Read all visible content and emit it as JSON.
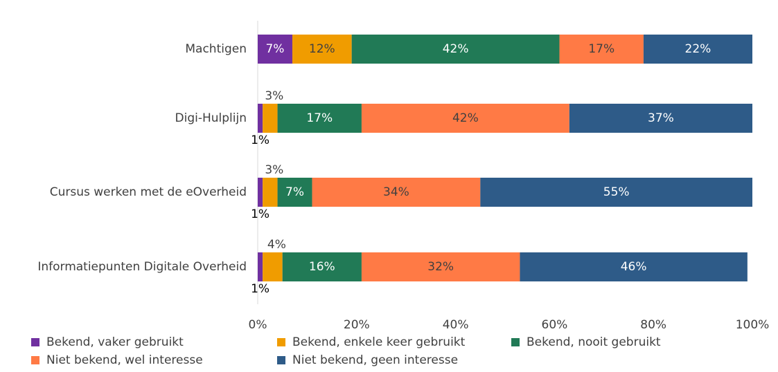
{
  "chart_data": {
    "type": "stacked_bar_horizontal",
    "categories": [
      "Machtigen",
      "Digi-Hulplijn",
      "Cursus werken met de eOverheid",
      "Informatiepunten Digitale Overheid"
    ],
    "series": [
      {
        "name": "Bekend, vaker gebruikt",
        "color": "#7030a0",
        "label_color": "#ffffff",
        "values": [
          7,
          1,
          1,
          1
        ],
        "value_labels": [
          "7%",
          "1%",
          "1%",
          "1%"
        ]
      },
      {
        "name": "Bekend, enkele keer gebruikt",
        "color": "#f09c00",
        "label_color": "#404040",
        "values": [
          12,
          3,
          3,
          4
        ],
        "value_labels": [
          "12%",
          "3%",
          "3%",
          "4%"
        ]
      },
      {
        "name": "Bekend, nooit gebruikt",
        "color": "#217a56",
        "label_color": "#ffffff",
        "values": [
          42,
          17,
          7,
          16
        ],
        "value_labels": [
          "42%",
          "17%",
          "7%",
          "16%"
        ]
      },
      {
        "name": "Niet bekend,  wel interesse",
        "color": "#ff7a45",
        "label_color": "#404040",
        "values": [
          17,
          42,
          34,
          32
        ],
        "value_labels": [
          "17%",
          "42%",
          "34%",
          "32%"
        ]
      },
      {
        "name": "Niet bekend, geen interesse",
        "color": "#2e5b88",
        "label_color": "#ffffff",
        "values": [
          22,
          37,
          55,
          46
        ],
        "value_labels": [
          "22%",
          "37%",
          "55%",
          "46%"
        ]
      }
    ],
    "xlim": [
      0,
      100
    ],
    "xticks": [
      {
        "value": 0,
        "label": "0%"
      },
      {
        "value": 20,
        "label": "20%"
      },
      {
        "value": 40,
        "label": "40%"
      },
      {
        "value": 60,
        "label": "60%"
      },
      {
        "value": 80,
        "label": "80%"
      },
      {
        "value": 100,
        "label": "100%"
      }
    ],
    "grid": false,
    "legend": "bottom"
  }
}
